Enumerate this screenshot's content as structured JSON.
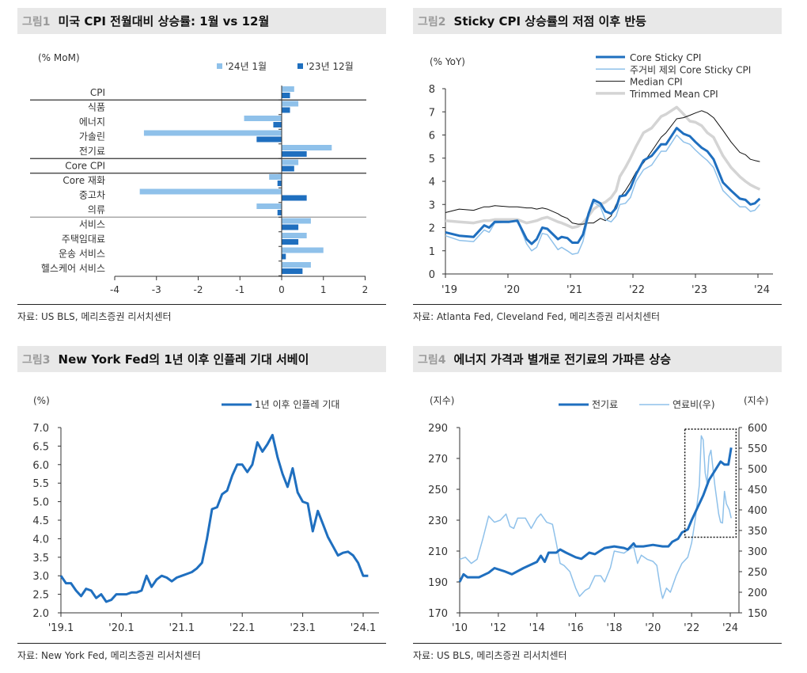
{
  "colors": {
    "dark": "#1f6fbf",
    "light": "#8fc1ea",
    "black": "#222222",
    "gray": "#d4d4d4",
    "header_bg": "#e8e8e8"
  },
  "panels": [
    {
      "fig": "그림1",
      "title": "미국 CPI 전월대비 상승률: 1월 vs 12월",
      "source": "자료: US BLS, 메리츠증권 리서치센터"
    },
    {
      "fig": "그림2",
      "title": "Sticky CPI 상승률의 저점 이후 반등",
      "source": "자료: Atlanta Fed, Cleveland Fed, 메리츠증권 리서치센터"
    },
    {
      "fig": "그림3",
      "title": "New York Fed의 1년 이후 인플레 기대 서베이",
      "source": "자료: New York Fed, 메리츠증권 리서치센터"
    },
    {
      "fig": "그림4",
      "title": "에너지 가격과 별개로 전기료의 가파른 상승",
      "source": "자료: US BLS, 메리츠증권 리서치센터"
    }
  ],
  "chart_data": [
    {
      "type": "bar",
      "orientation": "horizontal",
      "unit": "(% MoM)",
      "categories": [
        "CPI",
        "식품",
        "에너지",
        "가솔린",
        "전기료",
        "Core CPI",
        "Core 재화",
        "중고차",
        "의류",
        "서비스",
        "주택임대료",
        "운송 서비스",
        "헬스케어 서비스"
      ],
      "group_separators_after": [
        0,
        4,
        5,
        8
      ],
      "series": [
        {
          "name": "'24년 1월",
          "color": "#8fc1ea",
          "values": [
            0.3,
            0.4,
            -0.9,
            -3.3,
            1.2,
            0.4,
            -0.3,
            -3.4,
            -0.6,
            0.7,
            0.6,
            1.0,
            0.7
          ]
        },
        {
          "name": "'23년 12월",
          "color": "#1f6fbf",
          "values": [
            0.2,
            0.2,
            -0.2,
            -0.6,
            0.6,
            0.3,
            -0.1,
            0.6,
            -0.1,
            0.4,
            0.4,
            0.1,
            0.5
          ]
        }
      ],
      "xlim": [
        -4,
        2
      ],
      "xticks": [
        "-4",
        "-3",
        "-2",
        "-1",
        "0",
        "1",
        "2"
      ],
      "legend": "top-right"
    },
    {
      "type": "line",
      "unit": "(% YoY)",
      "ylim": [
        0,
        8
      ],
      "yticks": [
        "0",
        "1",
        "2",
        "3",
        "4",
        "5",
        "6",
        "7",
        "8"
      ],
      "xticks": [
        "'19",
        "'20",
        "'21",
        "'22",
        "'23",
        "'24"
      ],
      "legend": "top-right",
      "x": [
        2019.0,
        2019.22,
        2019.45,
        2019.62,
        2019.7,
        2019.79,
        2020.02,
        2020.15,
        2020.3,
        2020.38,
        2020.46,
        2020.55,
        2020.63,
        2020.8,
        2020.86,
        2020.95,
        2021.03,
        2021.12,
        2021.2,
        2021.29,
        2021.37,
        2021.48,
        2021.56,
        2021.65,
        2021.73,
        2021.79,
        2021.88,
        2021.96,
        2022.05,
        2022.17,
        2022.3,
        2022.45,
        2022.53,
        2022.7,
        2022.81,
        2022.91,
        2023.0,
        2023.1,
        2023.19,
        2023.29,
        2023.44,
        2023.57,
        2023.71,
        2023.8,
        2023.88,
        2023.95,
        2024.03
      ],
      "series": [
        {
          "name": "Trimmed Mean CPI",
          "color": "#d4d4d4",
          "values": [
            2.3,
            2.25,
            2.2,
            2.3,
            2.3,
            2.35,
            2.35,
            2.35,
            2.2,
            2.25,
            2.3,
            2.4,
            2.45,
            2.25,
            2.2,
            2.1,
            2.0,
            2.05,
            2.2,
            2.5,
            2.8,
            3.0,
            3.1,
            3.3,
            3.6,
            4.2,
            4.6,
            5.0,
            5.5,
            6.1,
            6.3,
            6.8,
            6.9,
            7.2,
            6.9,
            6.6,
            6.55,
            6.4,
            6.1,
            5.9,
            5.1,
            4.6,
            4.2,
            4.0,
            3.85,
            3.75,
            3.65
          ]
        },
        {
          "name": "Median CPI",
          "color": "#111111",
          "values": [
            2.65,
            2.8,
            2.75,
            2.9,
            2.9,
            2.95,
            2.9,
            2.9,
            2.85,
            2.85,
            2.8,
            2.85,
            2.8,
            2.6,
            2.5,
            2.4,
            2.2,
            2.15,
            2.15,
            2.2,
            2.2,
            2.4,
            2.3,
            2.5,
            3.0,
            3.3,
            3.6,
            3.95,
            4.4,
            4.8,
            5.3,
            5.9,
            6.1,
            6.7,
            6.75,
            6.85,
            6.95,
            7.05,
            6.95,
            6.75,
            6.2,
            5.7,
            5.25,
            5.15,
            4.95,
            4.9,
            4.85
          ]
        },
        {
          "name": "주거비 제외 Core Sticky CPI",
          "color": "#8fc1ea",
          "values": [
            1.65,
            1.45,
            1.4,
            1.9,
            1.8,
            2.2,
            2.25,
            2.3,
            1.3,
            1.0,
            1.15,
            1.75,
            1.7,
            1.05,
            1.15,
            1.0,
            0.85,
            0.9,
            1.4,
            2.5,
            3.1,
            2.9,
            2.35,
            2.25,
            2.5,
            3.0,
            3.05,
            3.3,
            4.0,
            4.5,
            4.7,
            5.3,
            5.3,
            6.0,
            5.7,
            5.6,
            5.35,
            5.1,
            4.9,
            4.6,
            3.6,
            3.25,
            2.9,
            2.9,
            2.7,
            2.75,
            3.0
          ]
        },
        {
          "name": "Core Sticky CPI",
          "color": "#1f6fbf",
          "values": [
            1.8,
            1.65,
            1.6,
            2.1,
            2.0,
            2.25,
            2.25,
            2.3,
            1.5,
            1.3,
            1.5,
            2.0,
            1.95,
            1.5,
            1.6,
            1.55,
            1.35,
            1.35,
            1.7,
            2.6,
            3.2,
            3.05,
            2.7,
            2.6,
            2.85,
            3.35,
            3.4,
            3.7,
            4.3,
            4.9,
            5.1,
            5.6,
            5.6,
            6.3,
            6.05,
            5.95,
            5.7,
            5.45,
            5.3,
            4.95,
            3.95,
            3.6,
            3.25,
            3.2,
            3.0,
            3.05,
            3.25
          ]
        }
      ],
      "legend_order": [
        "Core Sticky CPI",
        "주거비 제외 Core Sticky CPI",
        "Median CPI",
        "Trimmed Mean CPI"
      ]
    },
    {
      "type": "line",
      "unit": "(%)",
      "ylim": [
        2.0,
        7.0
      ],
      "yticks": [
        "2.0",
        "2.5",
        "3.0",
        "3.5",
        "4.0",
        "4.5",
        "5.0",
        "5.5",
        "6.0",
        "6.5",
        "7.0"
      ],
      "xticks": [
        "'19.1",
        "'20.1",
        "'21.1",
        "'22.1",
        "'23.1",
        "'24.1"
      ],
      "x_start": "2019-01",
      "frequency": "monthly",
      "legend": "top-right",
      "series": [
        {
          "name": "1년 이후 인플레 기대",
          "color": "#1f6fbf",
          "values": [
            3.0,
            2.8,
            2.8,
            2.6,
            2.45,
            2.65,
            2.6,
            2.4,
            2.5,
            2.3,
            2.35,
            2.5,
            2.5,
            2.5,
            2.55,
            2.55,
            2.6,
            3.0,
            2.7,
            2.9,
            3.0,
            2.95,
            2.85,
            2.95,
            3.0,
            3.05,
            3.1,
            3.2,
            3.35,
            4.0,
            4.8,
            4.85,
            5.2,
            5.3,
            5.7,
            6.0,
            6.0,
            5.8,
            6.0,
            6.6,
            6.35,
            6.55,
            6.8,
            6.2,
            5.75,
            5.4,
            5.9,
            5.25,
            5.0,
            4.95,
            4.2,
            4.75,
            4.4,
            4.05,
            3.8,
            3.55,
            3.62,
            3.65,
            3.55,
            3.35,
            3.0,
            3.0
          ]
        }
      ]
    },
    {
      "type": "line",
      "dual_axis": true,
      "unit_left": "(지수)",
      "unit_right": "(지수)",
      "ylim_left": [
        170,
        290
      ],
      "yticks_left": [
        "170",
        "190",
        "210",
        "230",
        "250",
        "270",
        "290"
      ],
      "ylim_right": [
        150,
        600
      ],
      "yticks_right": [
        "150",
        "200",
        "250",
        "300",
        "350",
        "400",
        "450",
        "500",
        "550",
        "600"
      ],
      "xticks": [
        "'10",
        "'12",
        "'14",
        "'16",
        "'18",
        "'20",
        "'22",
        "'24"
      ],
      "legend": "top",
      "highlight_box": {
        "x": [
          2021.65,
          2024.3
        ],
        "y_left": [
          219,
          289
        ]
      },
      "series": [
        {
          "name": "연료비(우)",
          "axis": "right",
          "color": "#8fc1ea",
          "x": [
            2010.0,
            2010.3,
            2010.6,
            2010.9,
            2011.2,
            2011.5,
            2011.8,
            2012.1,
            2012.4,
            2012.6,
            2012.8,
            2013.0,
            2013.4,
            2013.7,
            2014.0,
            2014.2,
            2014.5,
            2014.8,
            2015.0,
            2015.2,
            2015.4,
            2015.7,
            2016.0,
            2016.2,
            2016.5,
            2016.7,
            2017.0,
            2017.3,
            2017.5,
            2017.8,
            2018.0,
            2018.5,
            2018.8,
            2019.0,
            2019.2,
            2019.4,
            2019.7,
            2020.0,
            2020.2,
            2020.4,
            2020.5,
            2020.7,
            2020.9,
            2021.2,
            2021.5,
            2021.8,
            2022.0,
            2022.2,
            2022.4,
            2022.5,
            2022.6,
            2022.7,
            2022.8,
            2022.9,
            2023.0,
            2023.2,
            2023.4,
            2023.5,
            2023.6,
            2023.7,
            2023.8,
            2023.95,
            2024.05
          ],
          "values": [
            280,
            285,
            270,
            280,
            330,
            385,
            370,
            375,
            390,
            360,
            355,
            380,
            380,
            355,
            380,
            390,
            370,
            365,
            320,
            270,
            265,
            250,
            210,
            190,
            205,
            210,
            240,
            240,
            225,
            260,
            300,
            295,
            305,
            310,
            270,
            290,
            280,
            275,
            265,
            205,
            185,
            210,
            200,
            240,
            270,
            285,
            320,
            380,
            460,
            580,
            570,
            490,
            465,
            530,
            545,
            460,
            390,
            370,
            368,
            445,
            415,
            400,
            380
          ]
        },
        {
          "name": "전기료",
          "axis": "left",
          "color": "#1f6fbf",
          "x": [
            2010.0,
            2010.2,
            2010.4,
            2011.0,
            2011.5,
            2011.8,
            2012.3,
            2012.7,
            2013.3,
            2014.0,
            2014.2,
            2014.4,
            2014.6,
            2015.0,
            2015.2,
            2015.5,
            2016.0,
            2016.3,
            2016.7,
            2017.0,
            2017.5,
            2018.0,
            2018.5,
            2018.7,
            2019.0,
            2019.1,
            2019.5,
            2020.0,
            2020.5,
            2020.8,
            2021.0,
            2021.3,
            2021.5,
            2021.8,
            2022.0,
            2022.3,
            2022.6,
            2022.9,
            2023.2,
            2023.5,
            2023.7,
            2023.9,
            2024.05
          ],
          "values": [
            190,
            195,
            193,
            193,
            196,
            199,
            197,
            195,
            199,
            203,
            207,
            203,
            209,
            209,
            211,
            209,
            206,
            205,
            209,
            208,
            212,
            213,
            212,
            211,
            215,
            213,
            213,
            214,
            213,
            213,
            216,
            218,
            222,
            224,
            230,
            238,
            246,
            256,
            262,
            268,
            266,
            266,
            277
          ]
        }
      ],
      "legend_order": [
        "전기료",
        "연료비(우)"
      ]
    }
  ]
}
